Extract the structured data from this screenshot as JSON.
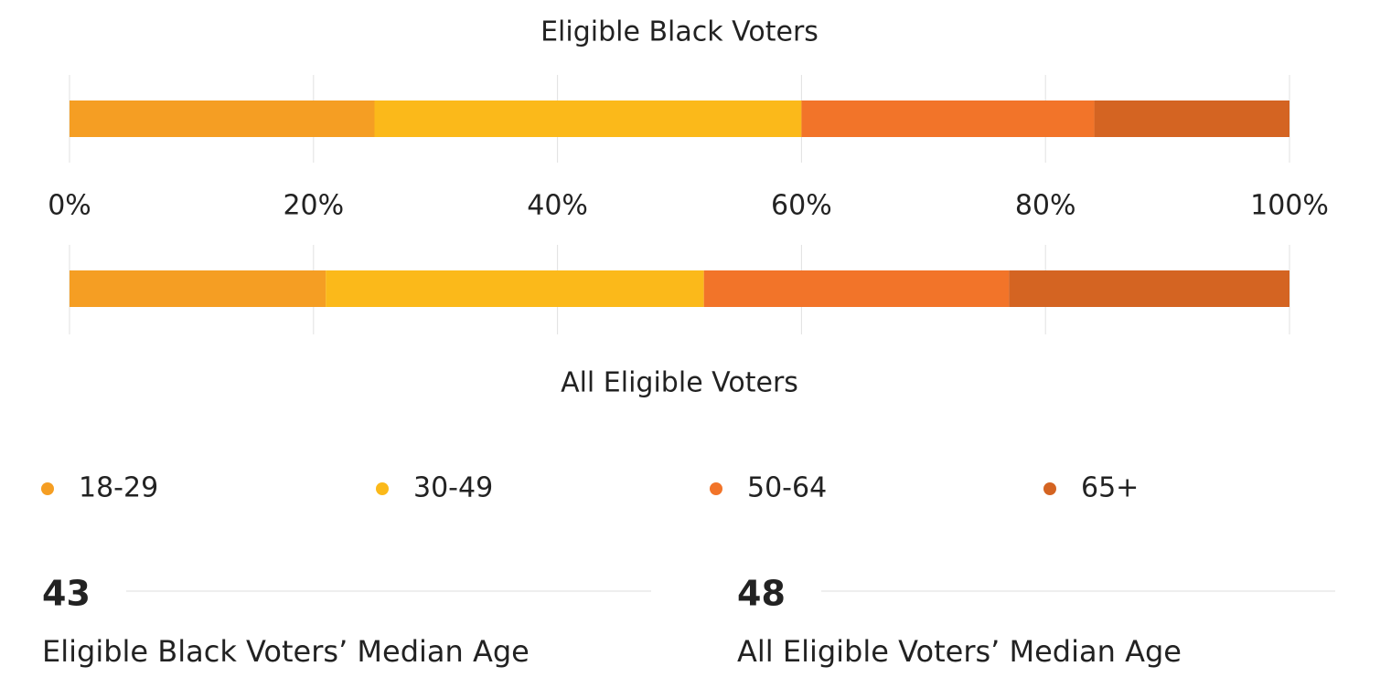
{
  "chart_data": {
    "type": "bar",
    "orientation": "horizontal",
    "stacked": true,
    "categories": [
      "Eligible Black Voters",
      "All Eligible Voters"
    ],
    "series": [
      {
        "name": "18-29",
        "color": "#f59e23",
        "values": [
          25,
          21
        ]
      },
      {
        "name": "30-49",
        "color": "#fbb91a",
        "values": [
          35,
          31
        ]
      },
      {
        "name": "50-64",
        "color": "#f27429",
        "values": [
          24,
          25
        ]
      },
      {
        "name": "65+",
        "color": "#d46422",
        "values": [
          16,
          23
        ]
      }
    ],
    "xlim": [
      0,
      100
    ],
    "xticks": [
      {
        "value": 0,
        "label": "0%"
      },
      {
        "value": 20,
        "label": "20%"
      },
      {
        "value": 40,
        "label": "40%"
      },
      {
        "value": 60,
        "label": "60%"
      },
      {
        "value": 80,
        "label": "80%"
      },
      {
        "value": 100,
        "label": "100%"
      }
    ],
    "grid": true
  },
  "stats": [
    {
      "value": 43,
      "label": "Eligible Black Voters’ Median Age"
    },
    {
      "value": 48,
      "label": "All Eligible Voters’ Median Age"
    }
  ]
}
